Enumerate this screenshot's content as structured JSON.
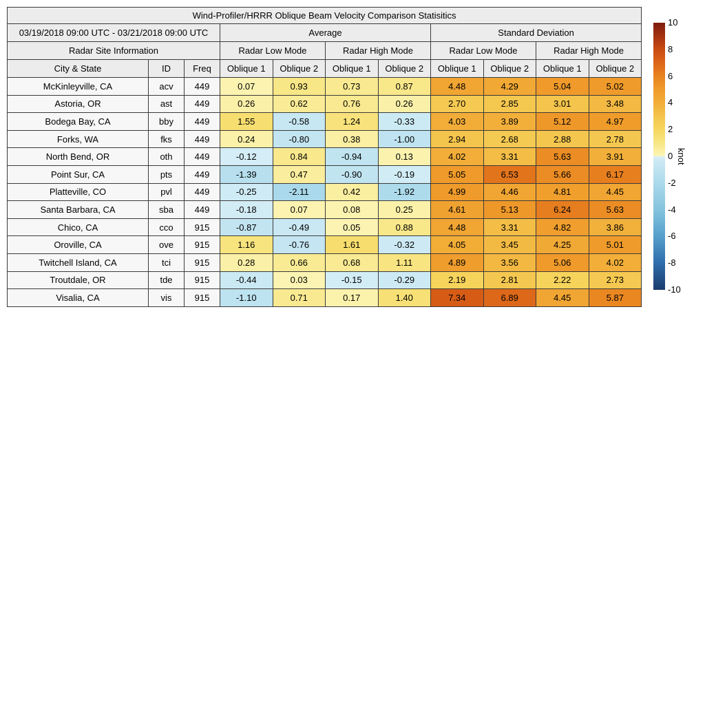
{
  "chart_data": {
    "type": "table",
    "title": "Wind-Profiler/HRRR Oblique Beam Velocity Comparison Statisitics",
    "period": "03/19/2018 09:00 UTC - 03/21/2018 09:00 UTC",
    "groups": [
      "Average",
      "Standard Deviation"
    ],
    "header": {
      "site_info": "Radar Site Information",
      "low_mode": "Radar Low Mode",
      "high_mode": "Radar High Mode",
      "city": "City & State",
      "id": "ID",
      "freq": "Freq",
      "oblique1": "Oblique 1",
      "oblique2": "Oblique 2"
    },
    "rows": [
      {
        "city": "McKinleyville, CA",
        "id": "acv",
        "freq": "449",
        "values": [
          "0.07",
          "0.93",
          "0.73",
          "0.87",
          "4.48",
          "4.29",
          "5.04",
          "5.02"
        ]
      },
      {
        "city": "Astoria, OR",
        "id": "ast",
        "freq": "449",
        "values": [
          "0.26",
          "0.62",
          "0.76",
          "0.26",
          "2.70",
          "2.85",
          "3.01",
          "3.48"
        ]
      },
      {
        "city": "Bodega Bay, CA",
        "id": "bby",
        "freq": "449",
        "values": [
          "1.55",
          "-0.58",
          "1.24",
          "-0.33",
          "4.03",
          "3.89",
          "5.12",
          "4.97"
        ]
      },
      {
        "city": "Forks, WA",
        "id": "fks",
        "freq": "449",
        "values": [
          "0.24",
          "-0.80",
          "0.38",
          "-1.00",
          "2.94",
          "2.68",
          "2.88",
          "2.78"
        ]
      },
      {
        "city": "North Bend, OR",
        "id": "oth",
        "freq": "449",
        "values": [
          "-0.12",
          "0.84",
          "-0.94",
          "0.13",
          "4.02",
          "3.31",
          "5.63",
          "3.91"
        ]
      },
      {
        "city": "Point Sur, CA",
        "id": "pts",
        "freq": "449",
        "values": [
          "-1.39",
          "0.47",
          "-0.90",
          "-0.19",
          "5.05",
          "6.53",
          "5.66",
          "6.17"
        ]
      },
      {
        "city": "Platteville, CO",
        "id": "pvl",
        "freq": "449",
        "values": [
          "-0.25",
          "-2.11",
          "0.42",
          "-1.92",
          "4.99",
          "4.46",
          "4.81",
          "4.45"
        ]
      },
      {
        "city": "Santa Barbara, CA",
        "id": "sba",
        "freq": "449",
        "values": [
          "-0.18",
          "0.07",
          "0.08",
          "0.25",
          "4.61",
          "5.13",
          "6.24",
          "5.63"
        ]
      },
      {
        "city": "Chico, CA",
        "id": "cco",
        "freq": "915",
        "values": [
          "-0.87",
          "-0.49",
          "0.05",
          "0.88",
          "4.48",
          "3.31",
          "4.82",
          "3.86"
        ]
      },
      {
        "city": "Oroville, CA",
        "id": "ove",
        "freq": "915",
        "values": [
          "1.16",
          "-0.76",
          "1.61",
          "-0.32",
          "4.05",
          "3.45",
          "4.25",
          "5.01"
        ]
      },
      {
        "city": "Twitchell Island, CA",
        "id": "tci",
        "freq": "915",
        "values": [
          "0.28",
          "0.66",
          "0.68",
          "1.11",
          "4.89",
          "3.56",
          "5.06",
          "4.02"
        ]
      },
      {
        "city": "Troutdale, OR",
        "id": "tde",
        "freq": "915",
        "values": [
          "-0.44",
          "0.03",
          "-0.15",
          "-0.29",
          "2.19",
          "2.81",
          "2.22",
          "2.73"
        ]
      },
      {
        "city": "Visalia, CA",
        "id": "vis",
        "freq": "915",
        "values": [
          "-1.10",
          "0.71",
          "0.17",
          "1.40",
          "7.34",
          "6.89",
          "4.45",
          "5.87"
        ]
      }
    ],
    "colorbar": {
      "label": "knot",
      "min": -10,
      "max": 10,
      "ticks": [
        "10",
        "8",
        "6",
        "4",
        "2",
        "0",
        "-2",
        "-4",
        "-6",
        "-8",
        "-10"
      ]
    },
    "colors": {
      "header_bg": "#ececec",
      "row_label_bg": "#f7f7f7",
      "border": "#3a3a3a",
      "pos_max": "#7e1c0d",
      "zero_pos": "#fcf4b4",
      "zero_neg": "#d9eff7",
      "neg_max": "#1a3b6c"
    }
  }
}
